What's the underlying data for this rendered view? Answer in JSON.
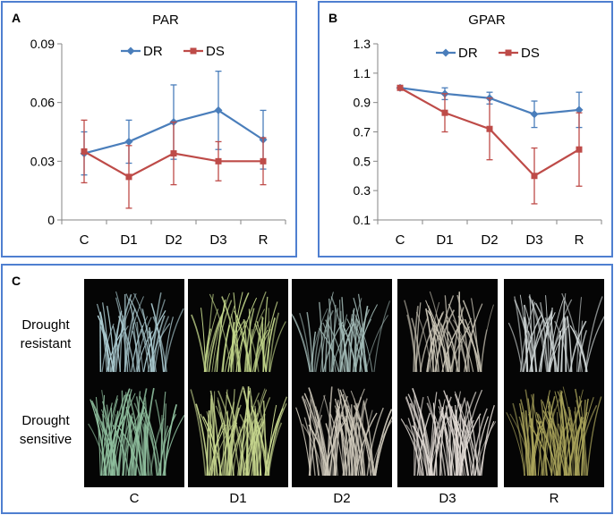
{
  "figure": {
    "panel_a_label": "A",
    "panel_b_label": "B",
    "panel_c_label": "C",
    "row_labels": {
      "resistant": [
        "Drought",
        "resistant"
      ],
      "sensitive": [
        "Drought",
        "sensitive"
      ]
    },
    "column_labels": [
      "C",
      "D1",
      "D2",
      "D3",
      "R"
    ],
    "photo_tints": {
      "resistant": [
        "#a9c9cf",
        "#c2d68a",
        "#a3bcb8",
        "#c8c3b4",
        "#cfd6d6"
      ],
      "sensitive": [
        "#8fbf9e",
        "#c8d88f",
        "#cfc9bb",
        "#e0d9d3",
        "#a9a35a"
      ]
    }
  },
  "chart_data": [
    {
      "type": "line",
      "title": "PAR",
      "categories": [
        "C",
        "D1",
        "D2",
        "D3",
        "R"
      ],
      "ylim": [
        0,
        0.09
      ],
      "yticks": [
        "0",
        "0.03",
        "0.06",
        "0.09"
      ],
      "ytick_values": [
        0,
        0.03,
        0.06,
        0.09
      ],
      "legend_position": "top",
      "series": [
        {
          "name": "DR",
          "marker": "diamond",
          "color": "#4a7ebb",
          "values": [
            0.034,
            0.04,
            0.05,
            0.056,
            0.041
          ],
          "errors": [
            0.011,
            0.011,
            0.019,
            0.02,
            0.015
          ]
        },
        {
          "name": "DS",
          "marker": "square",
          "color": "#be4b48",
          "values": [
            0.035,
            0.022,
            0.034,
            0.03,
            0.03
          ],
          "errors": [
            0.016,
            0.016,
            0.016,
            0.01,
            0.012
          ]
        }
      ]
    },
    {
      "type": "line",
      "title": "GPAR",
      "categories": [
        "C",
        "D1",
        "D2",
        "D3",
        "R"
      ],
      "ylim": [
        0.1,
        1.3
      ],
      "yticks": [
        "0.1",
        "0.3",
        "0.5",
        "0.7",
        "0.9",
        "1.1",
        "1.3"
      ],
      "ytick_values": [
        0.1,
        0.3,
        0.5,
        0.7,
        0.9,
        1.1,
        1.3
      ],
      "legend_position": "top",
      "series": [
        {
          "name": "DR",
          "marker": "diamond",
          "color": "#4a7ebb",
          "values": [
            1.0,
            0.96,
            0.93,
            0.82,
            0.85
          ],
          "errors": [
            0,
            0.04,
            0.04,
            0.09,
            0.12
          ]
        },
        {
          "name": "DS",
          "marker": "square",
          "color": "#be4b48",
          "values": [
            1.0,
            0.83,
            0.72,
            0.4,
            0.58
          ],
          "errors": [
            0,
            0.13,
            0.21,
            0.19,
            0.25
          ]
        }
      ]
    }
  ]
}
